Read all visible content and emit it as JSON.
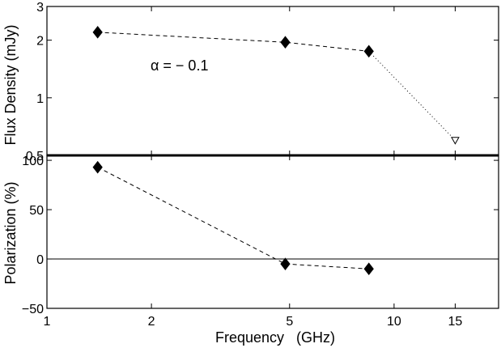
{
  "chart_data": [
    {
      "type": "line",
      "panel": "top",
      "title": "",
      "xlabel": "",
      "ylabel": "Flux Density (mJy)",
      "xscale": "log",
      "yscale": "log",
      "xlim": [
        1,
        20
      ],
      "ylim": [
        0.5,
        3
      ],
      "ytick_labels": [
        "0.5",
        "1",
        "2",
        "3"
      ],
      "yticks": [
        0.5,
        1,
        2,
        3
      ],
      "annotation": "α = − 0.1",
      "series": [
        {
          "x": [
            1.4,
            4.86,
            8.46
          ],
          "y": [
            2.2,
            1.95,
            1.75
          ],
          "marker": "filled-diamond",
          "line": "dashed"
        },
        {
          "x": [
            8.46,
            15
          ],
          "y": [
            1.75,
            0.6
          ],
          "marker": "open-down-triangle",
          "line": "dotted",
          "upper_limit_x": 15
        }
      ]
    },
    {
      "type": "line",
      "panel": "bottom",
      "title": "",
      "xlabel": "Frequency   (GHz)",
      "ylabel": "Polarization (%)",
      "xscale": "log",
      "yscale": "linear",
      "xlim": [
        1,
        20
      ],
      "ylim": [
        -50,
        105
      ],
      "xticks": [
        1,
        2,
        5,
        10,
        15
      ],
      "xtick_labels": [
        "1",
        "2",
        "5",
        "10",
        "15"
      ],
      "yticks": [
        -50,
        0,
        50,
        100
      ],
      "ytick_labels": [
        "−50",
        "0",
        "50",
        "100"
      ],
      "reference_line_y": 0,
      "series": [
        {
          "x": [
            1.4,
            4.86,
            8.46
          ],
          "y": [
            93,
            -5,
            -10
          ],
          "marker": "filled-diamond",
          "line": "dashed"
        }
      ]
    }
  ]
}
